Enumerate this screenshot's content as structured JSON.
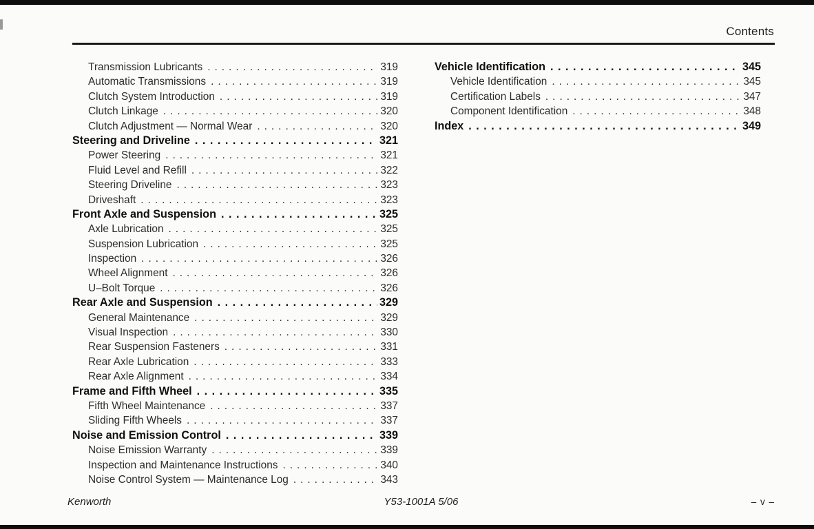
{
  "header": {
    "title": "Contents"
  },
  "toc": {
    "columns": [
      {
        "side": "left",
        "entries": [
          {
            "level": "sub",
            "label": "Transmission Lubricants",
            "page": "319"
          },
          {
            "level": "sub",
            "label": "Automatic Transmissions",
            "page": "319"
          },
          {
            "level": "sub",
            "label": "Clutch System Introduction",
            "page": "319"
          },
          {
            "level": "sub",
            "label": "Clutch Linkage",
            "page": "320"
          },
          {
            "level": "sub",
            "label": "Clutch Adjustment — Normal Wear",
            "page": "320"
          },
          {
            "level": "head",
            "label": "Steering and Driveline",
            "page": "321"
          },
          {
            "level": "sub",
            "label": "Power Steering",
            "page": "321"
          },
          {
            "level": "sub",
            "label": "Fluid Level and Refill",
            "page": "322"
          },
          {
            "level": "sub",
            "label": "Steering Driveline",
            "page": "323"
          },
          {
            "level": "sub",
            "label": "Driveshaft",
            "page": "323"
          },
          {
            "level": "head",
            "label": "Front Axle and Suspension",
            "page": "325"
          },
          {
            "level": "sub",
            "label": "Axle Lubrication",
            "page": "325"
          },
          {
            "level": "sub",
            "label": "Suspension Lubrication",
            "page": "325"
          },
          {
            "level": "sub",
            "label": "Inspection",
            "page": "326"
          },
          {
            "level": "sub",
            "label": "Wheel Alignment",
            "page": "326"
          },
          {
            "level": "sub",
            "label": "U–Bolt Torque",
            "page": "326"
          },
          {
            "level": "head",
            "label": "Rear Axle and Suspension",
            "page": "329"
          },
          {
            "level": "sub",
            "label": "General Maintenance",
            "page": "329"
          },
          {
            "level": "sub",
            "label": "Visual Inspection",
            "page": "330"
          },
          {
            "level": "sub",
            "label": "Rear Suspension Fasteners",
            "page": "331"
          },
          {
            "level": "sub",
            "label": "Rear Axle Lubrication",
            "page": "333"
          },
          {
            "level": "sub",
            "label": "Rear Axle Alignment",
            "page": "334"
          },
          {
            "level": "head",
            "label": "Frame and Fifth Wheel",
            "page": "335"
          },
          {
            "level": "sub",
            "label": "Fifth Wheel Maintenance",
            "page": "337"
          },
          {
            "level": "sub",
            "label": "Sliding Fifth Wheels",
            "page": "337"
          },
          {
            "level": "head",
            "label": "Noise and Emission Control",
            "page": "339"
          },
          {
            "level": "sub",
            "label": "Noise Emission Warranty",
            "page": "339"
          },
          {
            "level": "sub",
            "label": "Inspection and Maintenance Instructions",
            "page": "340"
          },
          {
            "level": "sub",
            "label": "Noise Control System — Maintenance Log",
            "page": "343"
          }
        ]
      },
      {
        "side": "right",
        "entries": [
          {
            "level": "head",
            "label": "Vehicle Identification",
            "page": "345"
          },
          {
            "level": "sub",
            "label": "Vehicle Identification",
            "page": "345"
          },
          {
            "level": "sub",
            "label": "Certification Labels",
            "page": "347"
          },
          {
            "level": "sub",
            "label": "Component Identification",
            "page": "348"
          },
          {
            "level": "head",
            "label": "Index",
            "page": "349"
          }
        ]
      }
    ]
  },
  "footer": {
    "left": "Kenworth",
    "center": "Y53-1001A 5/06",
    "right": "– v –"
  }
}
